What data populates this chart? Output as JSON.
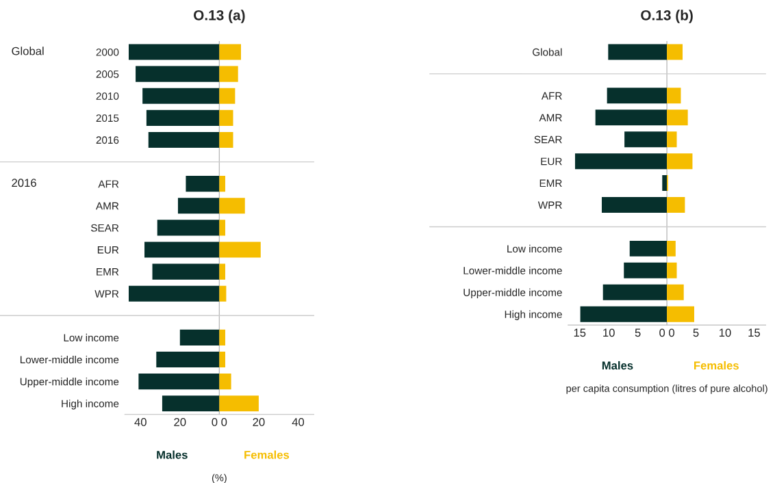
{
  "chart_data": [
    {
      "type": "bar",
      "orientation": "horizontal",
      "stacked": true,
      "title": "O.13 (a)",
      "xlabel": "(%)",
      "categories": [
        "2000",
        "2005",
        "2010",
        "2015",
        "2016",
        null,
        "AFR",
        "AMR",
        "SEAR",
        "EUR",
        "EMR",
        "WPR",
        null,
        "Low income",
        "Lower-middle income",
        "Upper-middle income",
        "High income"
      ],
      "series": [
        {
          "name": "Males",
          "color": "#06302c",
          "values": [
            -46,
            -42.5,
            -39,
            -37,
            -36,
            null,
            -17,
            -21,
            -31.5,
            -38,
            -34,
            -46,
            null,
            -20,
            -32,
            -41,
            -29
          ]
        },
        {
          "name": "Females",
          "color": "#f5bd00",
          "values": [
            11,
            9.5,
            8,
            7,
            7,
            null,
            3,
            13,
            3,
            21,
            3,
            3.5,
            null,
            3,
            3,
            6,
            20
          ]
        }
      ],
      "xlim": [
        -48,
        48
      ],
      "xticks": [
        {
          "value": -40,
          "label": "40"
        },
        {
          "value": -20,
          "label": "20"
        },
        {
          "value": 0,
          "label": "0 0"
        },
        20,
        40
      ],
      "annotations": [
        "Global",
        "2016"
      ],
      "grid": false,
      "legend": false
    },
    {
      "type": "bar",
      "orientation": "horizontal",
      "stacked": true,
      "title": "O.13 (b)",
      "xlabel": "per capita consumption (litres of pure alcohol)",
      "categories": [
        "Global",
        null,
        "AFR",
        "AMR",
        "SEAR",
        "EUR",
        "EMR",
        "WPR",
        null,
        "Low income",
        "Lower-middle income",
        "Upper-middle income",
        "High income"
      ],
      "series": [
        {
          "name": "Males",
          "color": "#06302c",
          "values": [
            -10.1,
            null,
            -10.3,
            -12.3,
            -7.3,
            -15.8,
            -0.8,
            -11.2,
            null,
            -6.4,
            -7.4,
            -11,
            -14.9
          ]
        },
        {
          "name": "Females",
          "color": "#f5bd00",
          "values": [
            2.7,
            null,
            2.4,
            3.6,
            1.7,
            4.4,
            0.2,
            3.1,
            null,
            1.5,
            1.7,
            2.9,
            4.7
          ]
        }
      ],
      "xlim": [
        -17,
        17
      ],
      "xticks": [
        {
          "value": -15,
          "label": "15"
        },
        {
          "value": -10,
          "label": "10"
        },
        {
          "value": -5,
          "label": "5"
        },
        {
          "value": 0,
          "label": "0 0"
        },
        5,
        10,
        15
      ],
      "grid": false,
      "legend": false
    }
  ]
}
